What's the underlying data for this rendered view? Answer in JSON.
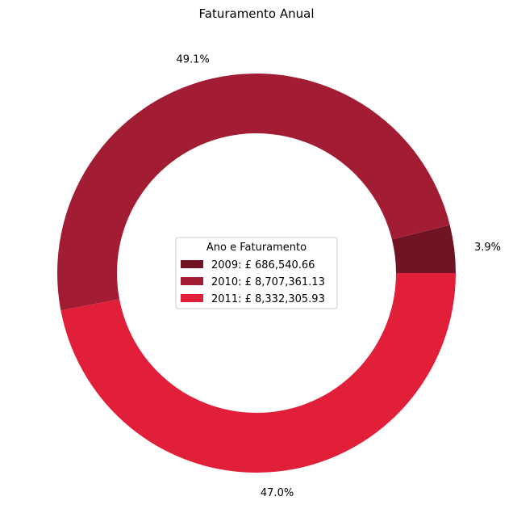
{
  "chart_data": {
    "type": "pie",
    "title": "Faturamento Anual",
    "donut": true,
    "start_angle_deg": 0,
    "direction": "counterclockwise",
    "slices": [
      {
        "year": "2009",
        "value": 686540.66,
        "percent_label": "3.9%",
        "legend_label": "2009: £ 686,540.66",
        "color": "#701424"
      },
      {
        "year": "2010",
        "value": 8707361.13,
        "percent_label": "49.1%",
        "legend_label": "2010: £ 8,707,361.13",
        "color": "#a21d34"
      },
      {
        "year": "2011",
        "value": 8332305.93,
        "percent_label": "47.0%",
        "legend_label": "2011: £ 8,332,305.93",
        "color": "#e21f39"
      }
    ],
    "legend": {
      "title": "Ano e Faturamento",
      "placement": "center"
    }
  }
}
